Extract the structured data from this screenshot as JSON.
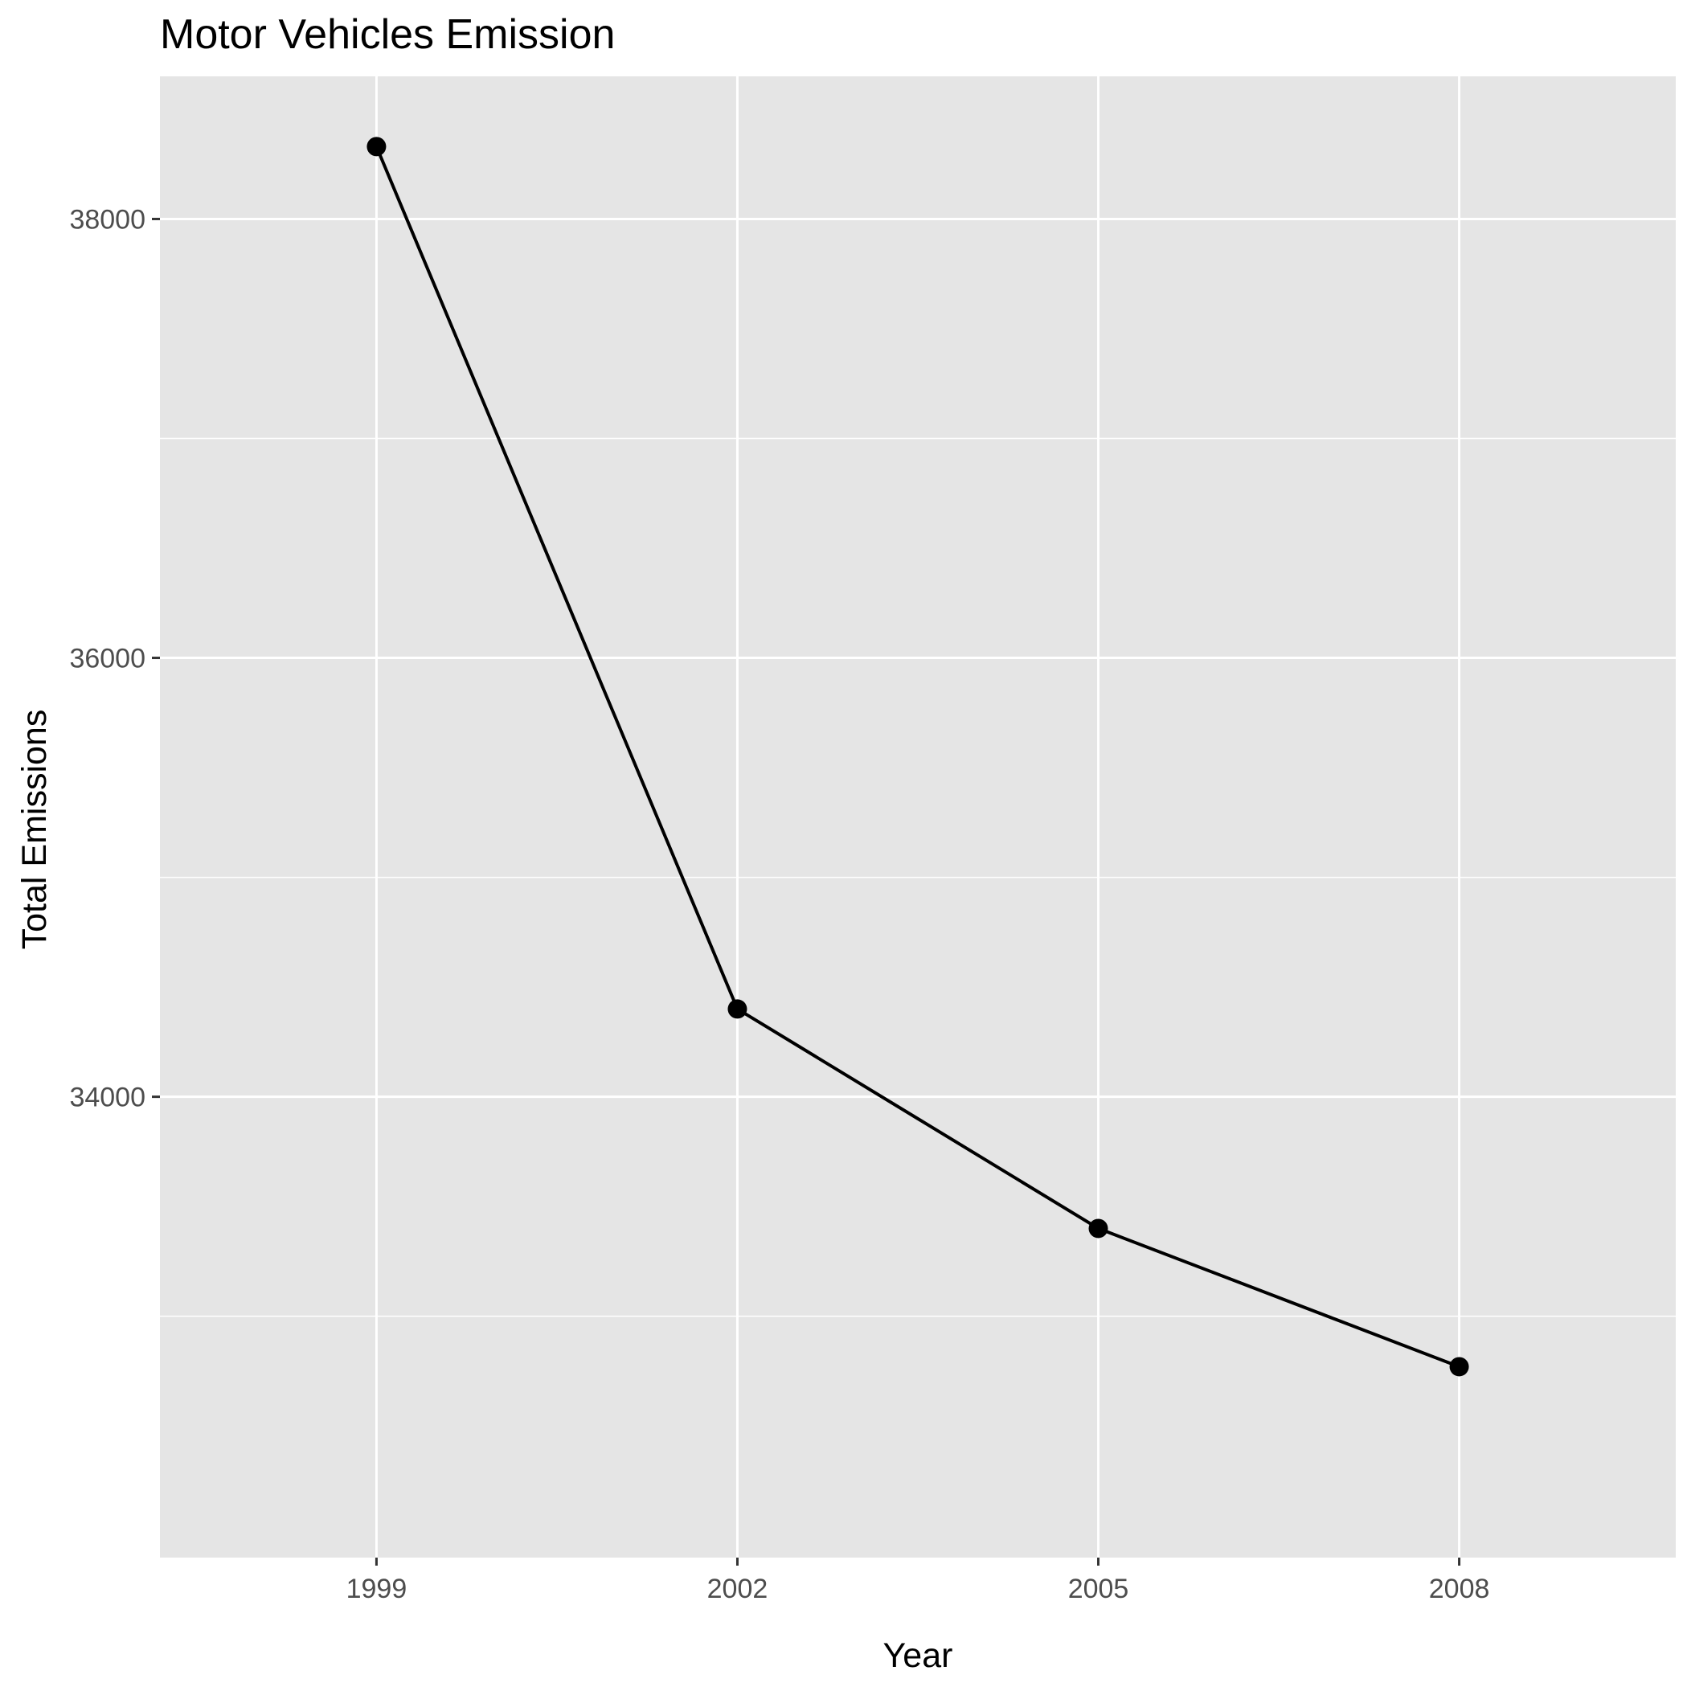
{
  "colors": {
    "panel_background": "#e5e5e5",
    "grid_major": "#ffffff",
    "grid_minor": "#ffffff",
    "line": "#000000",
    "point": "#000000",
    "tick": "#333333",
    "tick_label": "#4d4d4d",
    "text": "#000000"
  },
  "chart_data": {
    "type": "line",
    "title": "Motor Vehicles Emission",
    "xlabel": "Year",
    "ylabel": "Total Emissions",
    "x": [
      1999,
      2002,
      2005,
      2008
    ],
    "series": [
      {
        "values": [
          38330,
          34400,
          33400,
          32770
        ]
      }
    ],
    "xlim": [
      1997.2,
      2009.8
    ],
    "ylim": [
      31900,
      38650
    ],
    "x_ticks": [
      1999,
      2002,
      2005,
      2008
    ],
    "x_tick_labels": [
      "1999",
      "2002",
      "2005",
      "2008"
    ],
    "y_ticks": [
      34000,
      36000,
      38000
    ],
    "y_tick_labels": [
      "34000",
      "36000",
      "38000"
    ],
    "y_minor_ticks": [
      33000,
      35000,
      37000
    ],
    "grid": true,
    "markers": true,
    "legend": "none"
  }
}
